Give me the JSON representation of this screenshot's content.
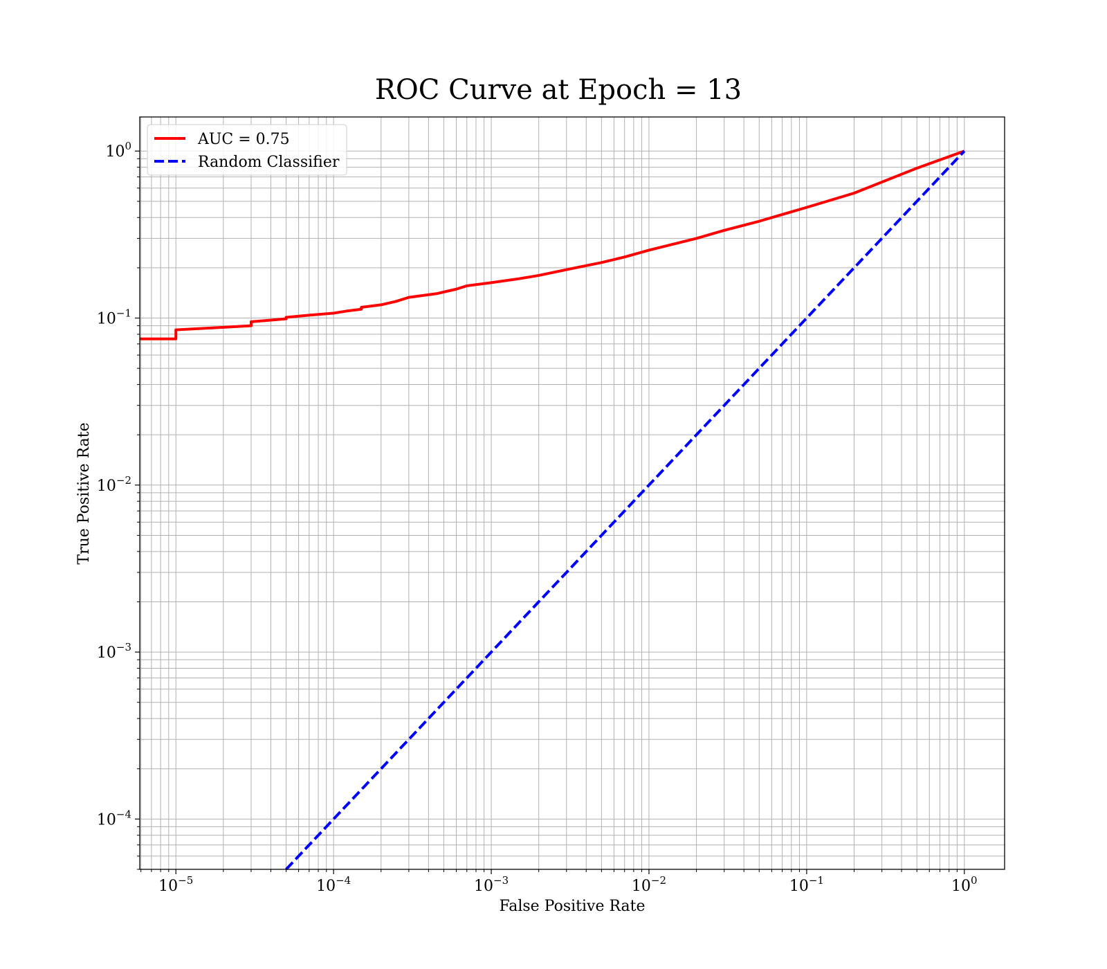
{
  "chart_data": {
    "type": "line",
    "title": "ROC Curve at Epoch = 13",
    "xlabel": "False Positive Rate",
    "ylabel": "True Positive Rate",
    "xscale": "log",
    "yscale": "log",
    "xlim": [
      5.9e-06,
      1.8
    ],
    "ylim": [
      5e-05,
      1.6
    ],
    "xticks": [
      {
        "value": 1e-05,
        "base": "10",
        "exp": "−5"
      },
      {
        "value": 0.0001,
        "base": "10",
        "exp": "−4"
      },
      {
        "value": 0.001,
        "base": "10",
        "exp": "−3"
      },
      {
        "value": 0.01,
        "base": "10",
        "exp": "−2"
      },
      {
        "value": 0.1,
        "base": "10",
        "exp": "−1"
      },
      {
        "value": 1,
        "base": "10",
        "exp": "0"
      }
    ],
    "yticks": [
      {
        "value": 0.0001,
        "base": "10",
        "exp": "−4"
      },
      {
        "value": 0.001,
        "base": "10",
        "exp": "−3"
      },
      {
        "value": 0.01,
        "base": "10",
        "exp": "−2"
      },
      {
        "value": 0.1,
        "base": "10",
        "exp": "−1"
      },
      {
        "value": 1,
        "base": "10",
        "exp": "0"
      }
    ],
    "grid": "major and minor",
    "legend": {
      "position": "top-left"
    },
    "series": [
      {
        "name": "AUC = 0.75",
        "color": "#ff0000",
        "style": "solid",
        "points": [
          [
            5.9e-06,
            0.075
          ],
          [
            1e-05,
            0.075
          ],
          [
            1e-05,
            0.085
          ],
          [
            2e-05,
            0.088
          ],
          [
            3e-05,
            0.09
          ],
          [
            3e-05,
            0.095
          ],
          [
            5e-05,
            0.099
          ],
          [
            5e-05,
            0.101
          ],
          [
            7e-05,
            0.104
          ],
          [
            0.0001,
            0.107
          ],
          [
            0.00012,
            0.11
          ],
          [
            0.00015,
            0.113
          ],
          [
            0.00015,
            0.116
          ],
          [
            0.0002,
            0.12
          ],
          [
            0.00025,
            0.126
          ],
          [
            0.0003,
            0.133
          ],
          [
            0.00045,
            0.14
          ],
          [
            0.0006,
            0.149
          ],
          [
            0.0007,
            0.156
          ],
          [
            0.001,
            0.163
          ],
          [
            0.0015,
            0.172
          ],
          [
            0.002,
            0.18
          ],
          [
            0.003,
            0.195
          ],
          [
            0.005,
            0.215
          ],
          [
            0.007,
            0.232
          ],
          [
            0.01,
            0.255
          ],
          [
            0.02,
            0.3
          ],
          [
            0.03,
            0.335
          ],
          [
            0.05,
            0.38
          ],
          [
            0.1,
            0.46
          ],
          [
            0.2,
            0.56
          ],
          [
            0.5,
            0.79
          ],
          [
            1,
            1
          ]
        ]
      },
      {
        "name": "Random Classifier",
        "color": "#0000ff",
        "style": "dashed",
        "points": [
          [
            5e-05,
            5e-05
          ],
          [
            1,
            1
          ]
        ]
      }
    ]
  }
}
